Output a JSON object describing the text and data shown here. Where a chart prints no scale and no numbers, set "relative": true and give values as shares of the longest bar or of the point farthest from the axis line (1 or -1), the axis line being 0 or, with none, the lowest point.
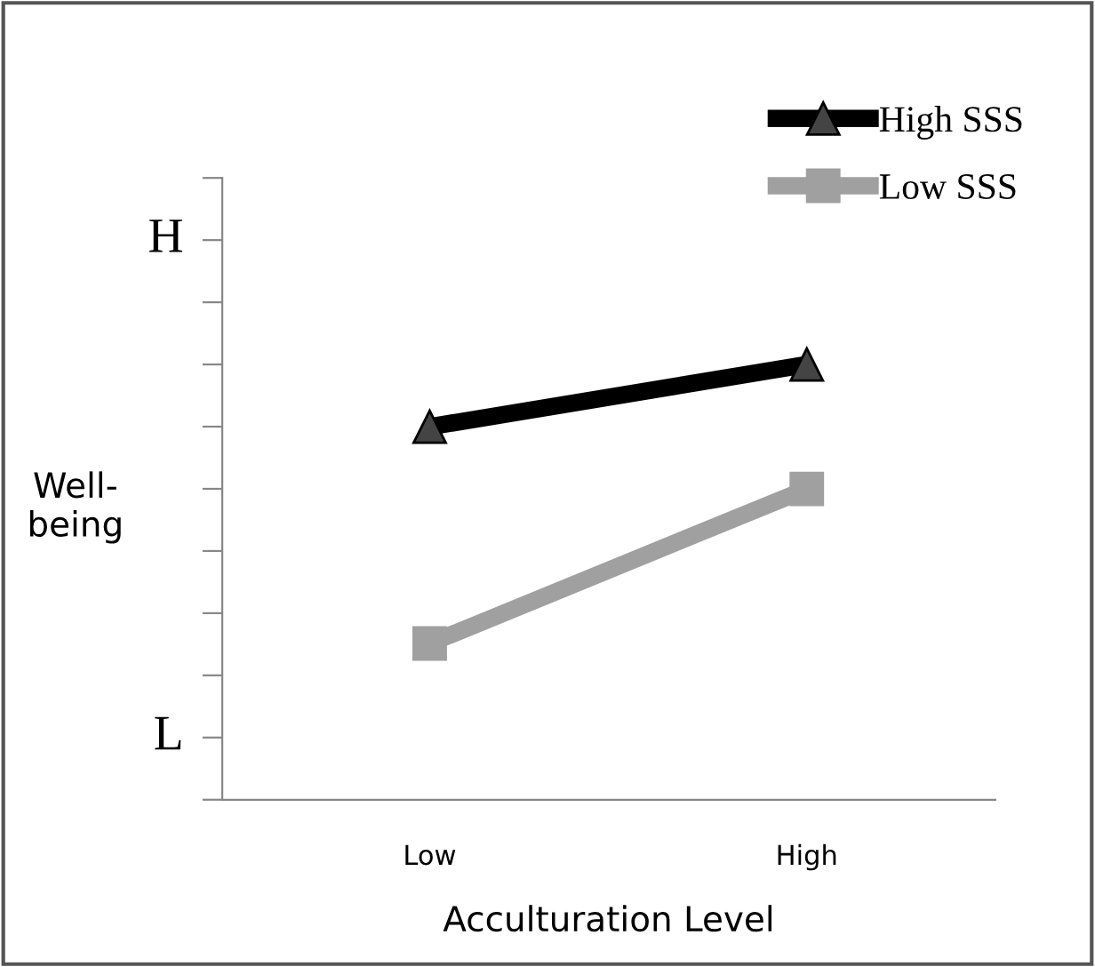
{
  "chart_data": {
    "type": "line",
    "relative": true,
    "xlabel": "Acculturation Level",
    "ylabel": "Well-\nbeing",
    "categories": [
      "Low",
      "High"
    ],
    "annotations": [
      "H",
      "L"
    ],
    "series": [
      {
        "name": "High SSS",
        "color": "#000000",
        "marker": "triangle",
        "values": [
          0.857,
          1
        ]
      },
      {
        "name": "Low SSS",
        "color": "#a0a0a0",
        "marker": "square",
        "values": [
          0.359,
          0.714
        ]
      }
    ],
    "legend": "top right",
    "grid": false,
    "line_style": "solid"
  }
}
